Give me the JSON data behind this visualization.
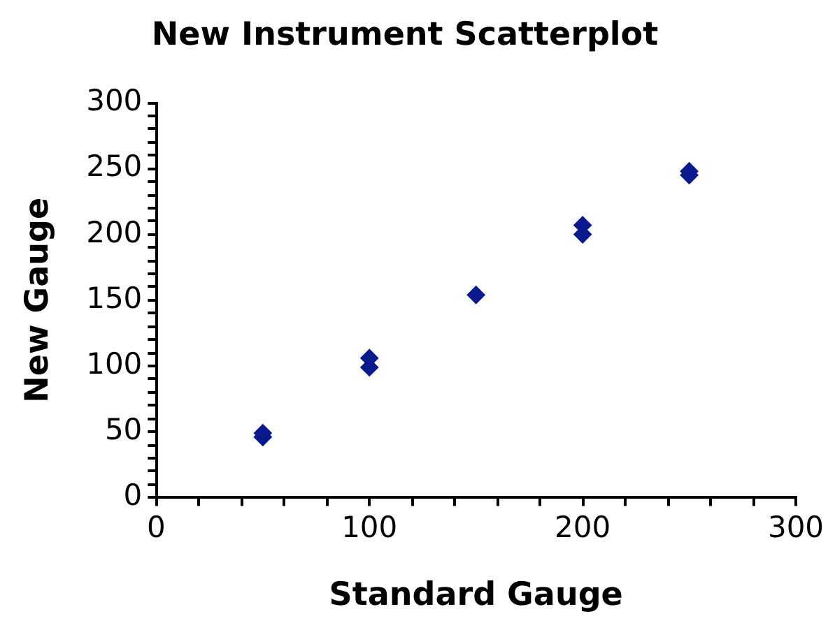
{
  "chart_data": {
    "type": "scatter",
    "title": "New Instrument Scatterplot",
    "xlabel": "Standard Gauge",
    "ylabel": "New Gauge",
    "x": [
      50,
      50,
      100,
      100,
      150,
      200,
      200,
      250,
      250
    ],
    "series": [
      {
        "color": "#0a1a8c",
        "values": [
          46,
          49,
          99,
          106,
          154,
          200,
          207,
          245,
          248
        ]
      }
    ],
    "marker": "diamond",
    "grid": false,
    "legend": false,
    "xlim": [
      0,
      300
    ],
    "ylim": [
      0,
      300
    ],
    "xticks": [
      0,
      {
        "value": 20,
        "label": null
      },
      {
        "value": 40,
        "label": null
      },
      {
        "value": 60,
        "label": null
      },
      {
        "value": 80,
        "label": null
      },
      100,
      {
        "value": 120,
        "label": null
      },
      {
        "value": 140,
        "label": null
      },
      {
        "value": 160,
        "label": null
      },
      {
        "value": 180,
        "label": null
      },
      200,
      {
        "value": 220,
        "label": null
      },
      {
        "value": 240,
        "label": null
      },
      {
        "value": 260,
        "label": null
      },
      {
        "value": 280,
        "label": null
      },
      300
    ],
    "yticks": [
      0,
      {
        "value": 10,
        "label": null
      },
      {
        "value": 20,
        "label": null
      },
      {
        "value": 30,
        "label": null
      },
      {
        "value": 40,
        "label": null
      },
      50,
      {
        "value": 60,
        "label": null
      },
      {
        "value": 70,
        "label": null
      },
      {
        "value": 80,
        "label": null
      },
      {
        "value": 90,
        "label": null
      },
      100,
      {
        "value": 110,
        "label": null
      },
      {
        "value": 120,
        "label": null
      },
      {
        "value": 130,
        "label": null
      },
      {
        "value": 140,
        "label": null
      },
      150,
      {
        "value": 160,
        "label": null
      },
      {
        "value": 170,
        "label": null
      },
      {
        "value": 180,
        "label": null
      },
      {
        "value": 190,
        "label": null
      },
      200,
      {
        "value": 210,
        "label": null
      },
      {
        "value": 220,
        "label": null
      },
      {
        "value": 230,
        "label": null
      },
      {
        "value": 240,
        "label": null
      },
      250,
      {
        "value": 260,
        "label": null
      },
      {
        "value": 270,
        "label": null
      },
      {
        "value": 280,
        "label": null
      },
      {
        "value": 290,
        "label": null
      },
      300
    ]
  }
}
